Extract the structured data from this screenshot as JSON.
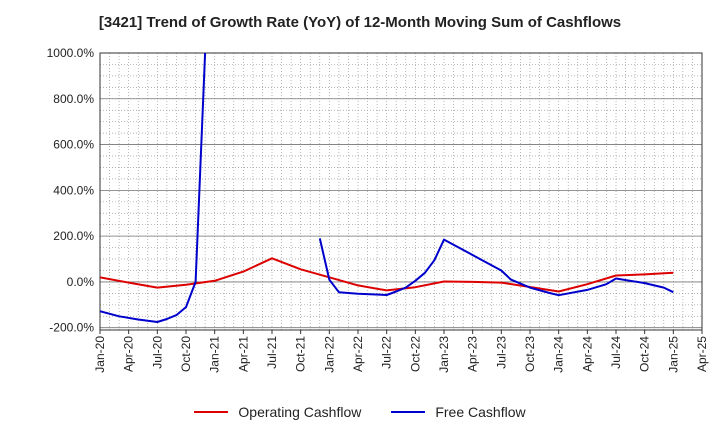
{
  "chart_data": {
    "type": "line",
    "title": "[3421]  Trend of Growth Rate (YoY) of 12-Month Moving Sum of Cashflows",
    "xlabel": "",
    "ylabel": "",
    "x_ticks": [
      "Jan-20",
      "Apr-20",
      "Jul-20",
      "Oct-20",
      "Jan-21",
      "Apr-21",
      "Jul-21",
      "Oct-21",
      "Jan-22",
      "Apr-22",
      "Jul-22",
      "Oct-22",
      "Jan-23",
      "Apr-23",
      "Jul-23",
      "Oct-23",
      "Jan-24",
      "Apr-24",
      "Jul-24",
      "Oct-24",
      "Jan-25",
      "Apr-25"
    ],
    "y_ticks": [
      "1000.0%",
      "800.0%",
      "600.0%",
      "400.0%",
      "200.0%",
      "0.0%",
      "-200.0%"
    ],
    "xlim": [
      "2020-01",
      "2025-04"
    ],
    "ylim": [
      -210,
      1000
    ],
    "y_unit": "%",
    "grid": true,
    "legend_position": "bottom",
    "series": [
      {
        "name": "Operating Cashflow",
        "color": "#dd0000",
        "points": [
          [
            "2020-01",
            20
          ],
          [
            "2020-04",
            -3
          ],
          [
            "2020-07",
            -25
          ],
          [
            "2020-10",
            -12
          ],
          [
            "2021-01",
            5
          ],
          [
            "2021-04",
            45
          ],
          [
            "2021-07",
            103
          ],
          [
            "2021-10",
            55
          ],
          [
            "2022-01",
            20
          ],
          [
            "2022-04",
            -15
          ],
          [
            "2022-07",
            -37
          ],
          [
            "2022-10",
            -23
          ],
          [
            "2023-01",
            2
          ],
          [
            "2023-04",
            0
          ],
          [
            "2023-07",
            -3
          ],
          [
            "2023-10",
            -22
          ],
          [
            "2024-01",
            -42
          ],
          [
            "2024-04",
            -10
          ],
          [
            "2024-07",
            28
          ],
          [
            "2024-10",
            33
          ],
          [
            "2025-01",
            40
          ]
        ]
      },
      {
        "name": "Free Cashflow",
        "color": "#0000cc",
        "segments": [
          [
            [
              "2020-01",
              -128
            ],
            [
              "2020-03",
              -150
            ],
            [
              "2020-05",
              -164
            ],
            [
              "2020-07",
              -175
            ],
            [
              "2020-08",
              -162
            ],
            [
              "2020-09",
              -145
            ],
            [
              "2020-10",
              -110
            ],
            [
              "2020-11",
              0
            ],
            [
              "2020-12",
              1000
            ]
          ],
          [
            [
              "2021-12",
              190
            ],
            [
              "2022-01",
              10
            ],
            [
              "2022-02",
              -45
            ],
            [
              "2022-04",
              -52
            ],
            [
              "2022-07",
              -57
            ],
            [
              "2022-08",
              -42
            ],
            [
              "2022-09",
              -25
            ],
            [
              "2022-10",
              5
            ],
            [
              "2022-11",
              40
            ],
            [
              "2022-12",
              95
            ],
            [
              "2023-01",
              185
            ],
            [
              "2023-03",
              140
            ],
            [
              "2023-05",
              95
            ],
            [
              "2023-07",
              50
            ],
            [
              "2023-08",
              10
            ],
            [
              "2023-10",
              -25
            ],
            [
              "2023-12",
              -48
            ],
            [
              "2024-01",
              -58
            ],
            [
              "2024-04",
              -35
            ],
            [
              "2024-06",
              -10
            ],
            [
              "2024-07",
              15
            ],
            [
              "2024-10",
              -5
            ],
            [
              "2024-12",
              -25
            ],
            [
              "2025-01",
              -45
            ]
          ]
        ]
      }
    ]
  }
}
